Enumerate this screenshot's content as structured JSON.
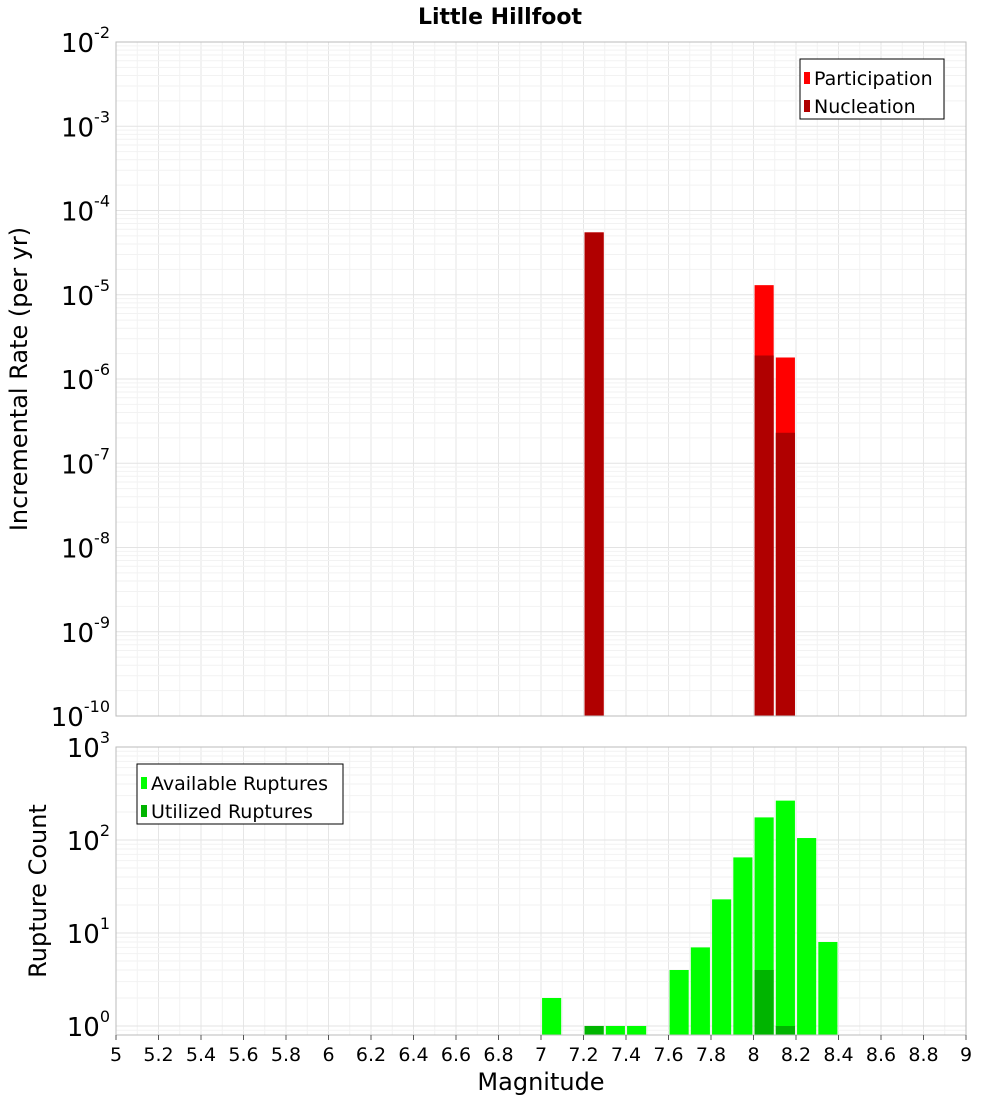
{
  "chart_data": [
    {
      "type": "bar",
      "title": "Little Hillfoot",
      "xlabel": "",
      "ylabel": "Incremental Rate (per yr)",
      "xlim": [
        5,
        9
      ],
      "ylim": [
        1e-10,
        0.01
      ],
      "y_scale": "log",
      "y_tick_exponents": [
        -10,
        -9,
        -8,
        -7,
        -6,
        -5,
        -4,
        -3,
        -2
      ],
      "legend_position": "top-right",
      "bar_width": 0.09,
      "grid": true,
      "series": [
        {
          "name": "Participation",
          "color": "#ff0000",
          "points": [
            {
              "x": 7.25,
              "y": 5.5e-05
            },
            {
              "x": 8.05,
              "y": 1.3e-05
            },
            {
              "x": 8.15,
              "y": 1.8e-06
            }
          ]
        },
        {
          "name": "Nucleation",
          "color": "#b00000",
          "points": [
            {
              "x": 7.25,
              "y": 5.5e-05
            },
            {
              "x": 8.05,
              "y": 1.9e-06
            },
            {
              "x": 8.15,
              "y": 2.3e-07
            }
          ]
        }
      ]
    },
    {
      "type": "bar",
      "title": "",
      "xlabel": "Magnitude",
      "ylabel": "Rupture Count",
      "xlim": [
        5,
        9
      ],
      "ylim": [
        0.8,
        1000
      ],
      "y_scale": "log",
      "y_tick_exponents": [
        0,
        1,
        2,
        3
      ],
      "x_ticks": [
        "5",
        "5.2",
        "5.4",
        "5.6",
        "5.8",
        "6",
        "6.2",
        "6.4",
        "6.6",
        "6.8",
        "7",
        "7.2",
        "7.4",
        "7.6",
        "7.8",
        "8",
        "8.2",
        "8.4",
        "8.6",
        "8.8",
        "9"
      ],
      "legend_position": "top-left",
      "bar_width": 0.09,
      "grid": true,
      "series": [
        {
          "name": "Available Ruptures",
          "color": "#00ff00",
          "points": [
            {
              "x": 7.05,
              "y": 2
            },
            {
              "x": 7.25,
              "y": 1
            },
            {
              "x": 7.35,
              "y": 1
            },
            {
              "x": 7.45,
              "y": 1
            },
            {
              "x": 7.65,
              "y": 4
            },
            {
              "x": 7.75,
              "y": 7
            },
            {
              "x": 7.85,
              "y": 23
            },
            {
              "x": 7.95,
              "y": 65
            },
            {
              "x": 8.05,
              "y": 175
            },
            {
              "x": 8.15,
              "y": 265
            },
            {
              "x": 8.25,
              "y": 105
            },
            {
              "x": 8.35,
              "y": 8
            }
          ]
        },
        {
          "name": "Utilized Ruptures",
          "color": "#00b400",
          "points": [
            {
              "x": 7.25,
              "y": 1
            },
            {
              "x": 8.05,
              "y": 4
            },
            {
              "x": 8.15,
              "y": 1
            }
          ]
        }
      ]
    }
  ]
}
